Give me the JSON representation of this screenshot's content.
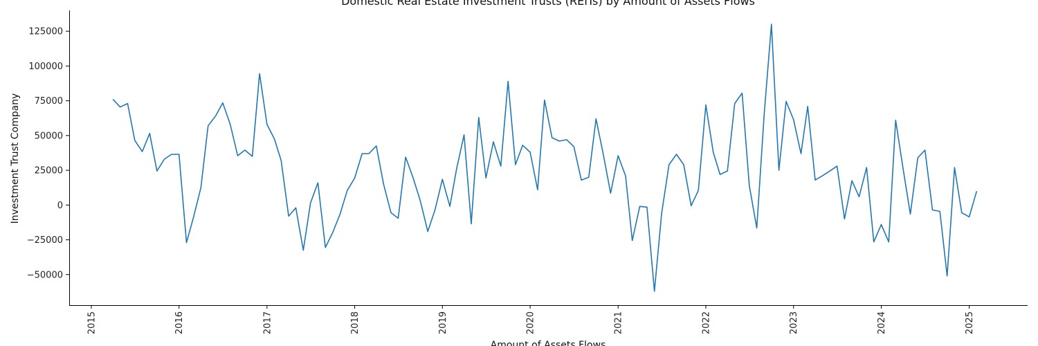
{
  "chart_data": {
    "type": "line",
    "title": "Domestic Real Estate Investment Trusts (REITs) by Amount of Assets Flows",
    "xlabel": "Amount of Assets Flows",
    "ylabel": "Investment Trust Company",
    "x_ticks": [
      "2015",
      "2016",
      "2017",
      "2018",
      "2019",
      "2020",
      "2021",
      "2022",
      "2023",
      "2024",
      "2025"
    ],
    "y_ticks": [
      "−50000",
      "−25000",
      "0",
      "25000",
      "50000",
      "75000",
      "100000",
      "125000"
    ],
    "xlim": [
      "2014-10-01",
      "2025-09-01"
    ],
    "ylim": [
      -72000,
      140000
    ],
    "grid": false,
    "color": "#1f77b4",
    "series": [
      {
        "x": [
          "2015-04",
          "2015-05",
          "2015-06",
          "2015-07",
          "2015-08",
          "2015-09",
          "2015-10",
          "2015-11",
          "2015-12",
          "2016-01",
          "2016-02",
          "2016-03",
          "2016-04",
          "2016-05",
          "2016-06",
          "2016-07",
          "2016-08",
          "2016-09",
          "2016-10",
          "2016-11",
          "2016-12",
          "2017-01",
          "2017-02",
          "2017-03",
          "2017-04",
          "2017-05",
          "2017-06",
          "2017-07",
          "2017-08",
          "2017-09",
          "2017-10",
          "2017-11",
          "2017-12",
          "2018-01",
          "2018-02",
          "2018-03",
          "2018-04",
          "2018-05",
          "2018-06",
          "2018-07",
          "2018-08",
          "2018-09",
          "2018-10",
          "2018-11",
          "2018-12",
          "2019-01",
          "2019-02",
          "2019-03",
          "2019-04",
          "2019-05",
          "2019-06",
          "2019-07",
          "2019-08",
          "2019-09",
          "2019-10",
          "2019-11",
          "2019-12",
          "2020-01",
          "2020-02",
          "2020-03",
          "2020-04",
          "2020-05",
          "2020-06",
          "2020-07",
          "2020-08",
          "2020-09",
          "2020-10",
          "2020-11",
          "2020-12",
          "2021-01",
          "2021-02",
          "2021-03",
          "2021-04",
          "2021-05",
          "2021-06",
          "2021-07",
          "2021-08",
          "2021-09",
          "2021-10",
          "2021-11",
          "2021-12",
          "2022-01",
          "2022-02",
          "2022-03",
          "2022-04",
          "2022-05",
          "2022-06",
          "2022-07",
          "2022-08",
          "2022-09",
          "2022-10",
          "2022-11",
          "2022-12",
          "2023-01",
          "2023-02",
          "2023-03",
          "2023-04",
          "2023-05",
          "2023-06",
          "2023-07",
          "2023-08",
          "2023-09",
          "2023-10",
          "2023-11",
          "2023-12",
          "2024-01",
          "2024-02",
          "2024-03",
          "2024-04",
          "2024-05",
          "2024-06",
          "2024-07",
          "2024-08",
          "2024-09",
          "2024-10",
          "2024-11",
          "2024-12",
          "2025-01",
          "2025-02"
        ],
        "values": [
          76000,
          70500,
          73000,
          46500,
          38500,
          51500,
          24500,
          33000,
          36500,
          36500,
          -27000,
          -9000,
          12500,
          57000,
          64000,
          73500,
          58000,
          35500,
          39500,
          35000,
          94500,
          58000,
          47500,
          32000,
          -8000,
          -2000,
          -32500,
          1500,
          16000,
          -30500,
          -20000,
          -6500,
          10500,
          19500,
          37000,
          37000,
          42500,
          15000,
          -5500,
          -9500,
          34500,
          19500,
          3000,
          -19000,
          -3500,
          18500,
          -1000,
          26000,
          50500,
          -13500,
          63000,
          19500,
          45500,
          28000,
          89000,
          29000,
          43000,
          38000,
          11000,
          75500,
          48500,
          46000,
          47000,
          42000,
          18000,
          20000,
          62000,
          36000,
          8500,
          35500,
          21000,
          -25500,
          -1000,
          -1500,
          -62000,
          -6000,
          29000,
          36500,
          29000,
          -500,
          10500,
          72000,
          38000,
          22000,
          24500,
          73000,
          80500,
          14000,
          -16500,
          66000,
          130000,
          25000,
          74500,
          61500,
          37000,
          71000,
          18000,
          21000,
          24500,
          28000,
          -10000,
          17500,
          6000,
          27000,
          -26500,
          -14000,
          -26500,
          61000,
          26000,
          -6500,
          34000,
          39500,
          -3500,
          -4500,
          -51000,
          27000,
          -5500,
          -8500,
          10000
        ]
      }
    ]
  }
}
